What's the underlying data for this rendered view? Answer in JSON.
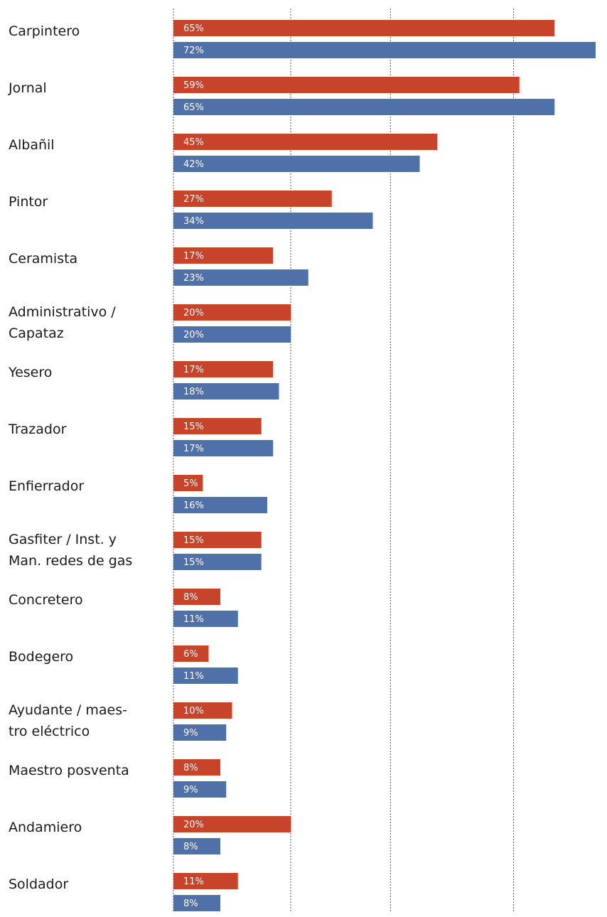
{
  "chart_data": {
    "type": "bar",
    "orientation": "horizontal",
    "grid": true,
    "xlim": [
      0,
      72
    ],
    "categories": [
      [
        "Carpintero"
      ],
      [
        "Jornal"
      ],
      [
        "Albañil"
      ],
      [
        "Pintor"
      ],
      [
        "Ceramista"
      ],
      [
        "Administrativo /",
        "Capataz"
      ],
      [
        "Yesero"
      ],
      [
        "Trazador"
      ],
      [
        "Enfierrador"
      ],
      [
        "Gasfiter / Inst. y",
        "Man. redes de gas"
      ],
      [
        "Concretero"
      ],
      [
        "Bodegero"
      ],
      [
        "Ayudante / maes-",
        "tro eléctrico"
      ],
      [
        "Maestro posventa"
      ],
      [
        "Andamiero"
      ],
      [
        "Soldador"
      ]
    ],
    "series": [
      {
        "color": "#c8432b",
        "values": [
          65,
          59,
          45,
          27,
          17,
          20,
          17,
          15,
          5,
          15,
          8,
          6,
          10,
          8,
          20,
          11
        ],
        "labels": [
          "65%",
          "59%",
          "45%",
          "27%",
          "17%",
          "20%",
          "17%",
          "15%",
          "5%",
          "15%",
          "8%",
          "6%",
          "10%",
          "8%",
          "20%",
          "11%"
        ]
      },
      {
        "color": "#4f70a8",
        "values": [
          72,
          65,
          42,
          34,
          23,
          20,
          18,
          17,
          16,
          15,
          11,
          11,
          9,
          9,
          8,
          8
        ],
        "labels": [
          "72%",
          "65%",
          "42%",
          "34%",
          "23%",
          "20%",
          "18%",
          "17%",
          "16%",
          "15%",
          "11%",
          "11%",
          "9%",
          "9%",
          "8%",
          "8%"
        ]
      }
    ]
  }
}
